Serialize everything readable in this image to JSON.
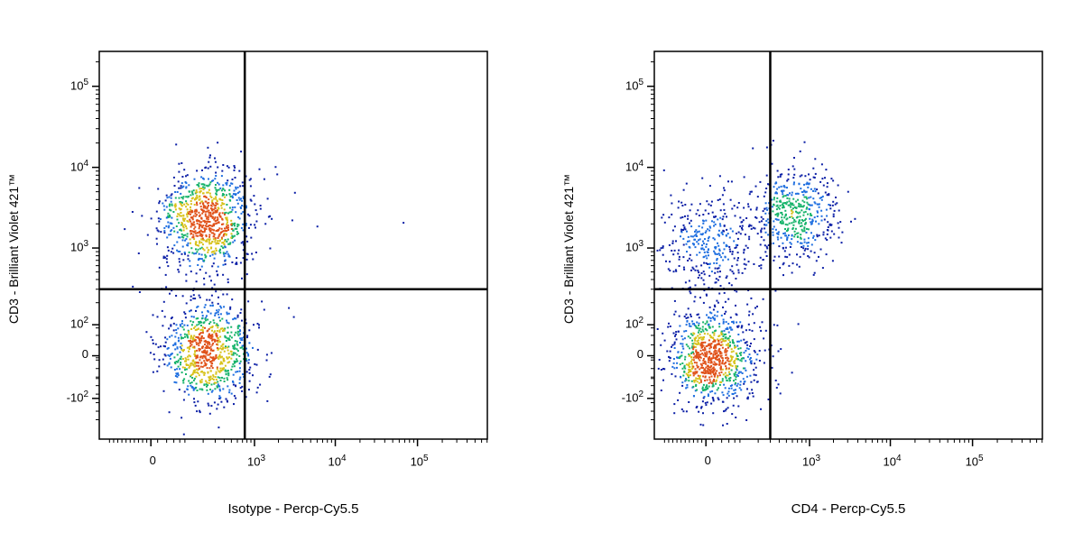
{
  "chart_data": [
    {
      "type": "scatter",
      "subtype": "flow-cytometry density plot",
      "xlabel": "Isotype - Percp-Cy5.5",
      "ylabel": "CD3 - Brilliant Violet 421™",
      "x_scale": "biexponential",
      "y_scale": "biexponential",
      "x_ticks": [
        {
          "value": 0,
          "base": "0",
          "exp": ""
        },
        {
          "value": 1000,
          "base": "10",
          "exp": "3"
        },
        {
          "value": 10000,
          "base": "10",
          "exp": "4"
        },
        {
          "value": 100000,
          "base": "10",
          "exp": "5"
        }
      ],
      "y_ticks": [
        {
          "value": 100000,
          "base": "10",
          "exp": "5"
        },
        {
          "value": 10000,
          "base": "10",
          "exp": "4"
        },
        {
          "value": 1000,
          "base": "10",
          "exp": "3"
        },
        {
          "value": 100,
          "base": "10",
          "exp": "2"
        },
        {
          "value": 0,
          "base": "0",
          "exp": ""
        },
        {
          "value": -100,
          "base": "-10",
          "exp": "2"
        }
      ],
      "quadrant_gate": {
        "x": 750,
        "y": 300
      },
      "populations": [
        {
          "name_shown": "",
          "center": {
            "x": 220,
            "y": 2300
          },
          "events": 900,
          "quadrant": "upper-left"
        },
        {
          "name_shown": "",
          "center": {
            "x": 240,
            "y": 40
          },
          "events": 850,
          "quadrant": "lower-left"
        },
        {
          "name_shown": "",
          "center": {
            "x": 3000,
            "y": 2500
          },
          "events": 6,
          "quadrant": "upper-right"
        }
      ],
      "colormap": [
        "#0b1fa6",
        "#1f6fe0",
        "#17b36a",
        "#d7c21a",
        "#e0521a"
      ]
    },
    {
      "type": "scatter",
      "subtype": "flow-cytometry density plot",
      "xlabel": "CD4 - Percp-Cy5.5",
      "ylabel": "CD3 - Brilliant Violet 421™",
      "x_scale": "biexponential",
      "y_scale": "biexponential",
      "x_ticks": [
        {
          "value": 0,
          "base": "0",
          "exp": ""
        },
        {
          "value": 1000,
          "base": "10",
          "exp": "3"
        },
        {
          "value": 10000,
          "base": "10",
          "exp": "4"
        },
        {
          "value": 100000,
          "base": "10",
          "exp": "5"
        }
      ],
      "y_ticks": [
        {
          "value": 100000,
          "base": "10",
          "exp": "5"
        },
        {
          "value": 10000,
          "base": "10",
          "exp": "4"
        },
        {
          "value": 1000,
          "base": "10",
          "exp": "3"
        },
        {
          "value": 100,
          "base": "10",
          "exp": "2"
        },
        {
          "value": 0,
          "base": "0",
          "exp": ""
        },
        {
          "value": -100,
          "base": "-10",
          "exp": "2"
        }
      ],
      "quadrant_gate": {
        "x": 300,
        "y": 300
      },
      "populations": [
        {
          "name_shown": "",
          "center": {
            "x": 0,
            "y": 1200
          },
          "events": 350,
          "quadrant": "upper-left"
        },
        {
          "name_shown": "",
          "center": {
            "x": 600,
            "y": 2800
          },
          "events": 500,
          "quadrant": "upper-right"
        },
        {
          "name_shown": "",
          "center": {
            "x": 20,
            "y": 30
          },
          "events": 900,
          "quadrant": "lower-left"
        }
      ],
      "colormap": [
        "#0b1fa6",
        "#1f6fe0",
        "#17b36a",
        "#d7c21a",
        "#e0521a"
      ]
    }
  ]
}
